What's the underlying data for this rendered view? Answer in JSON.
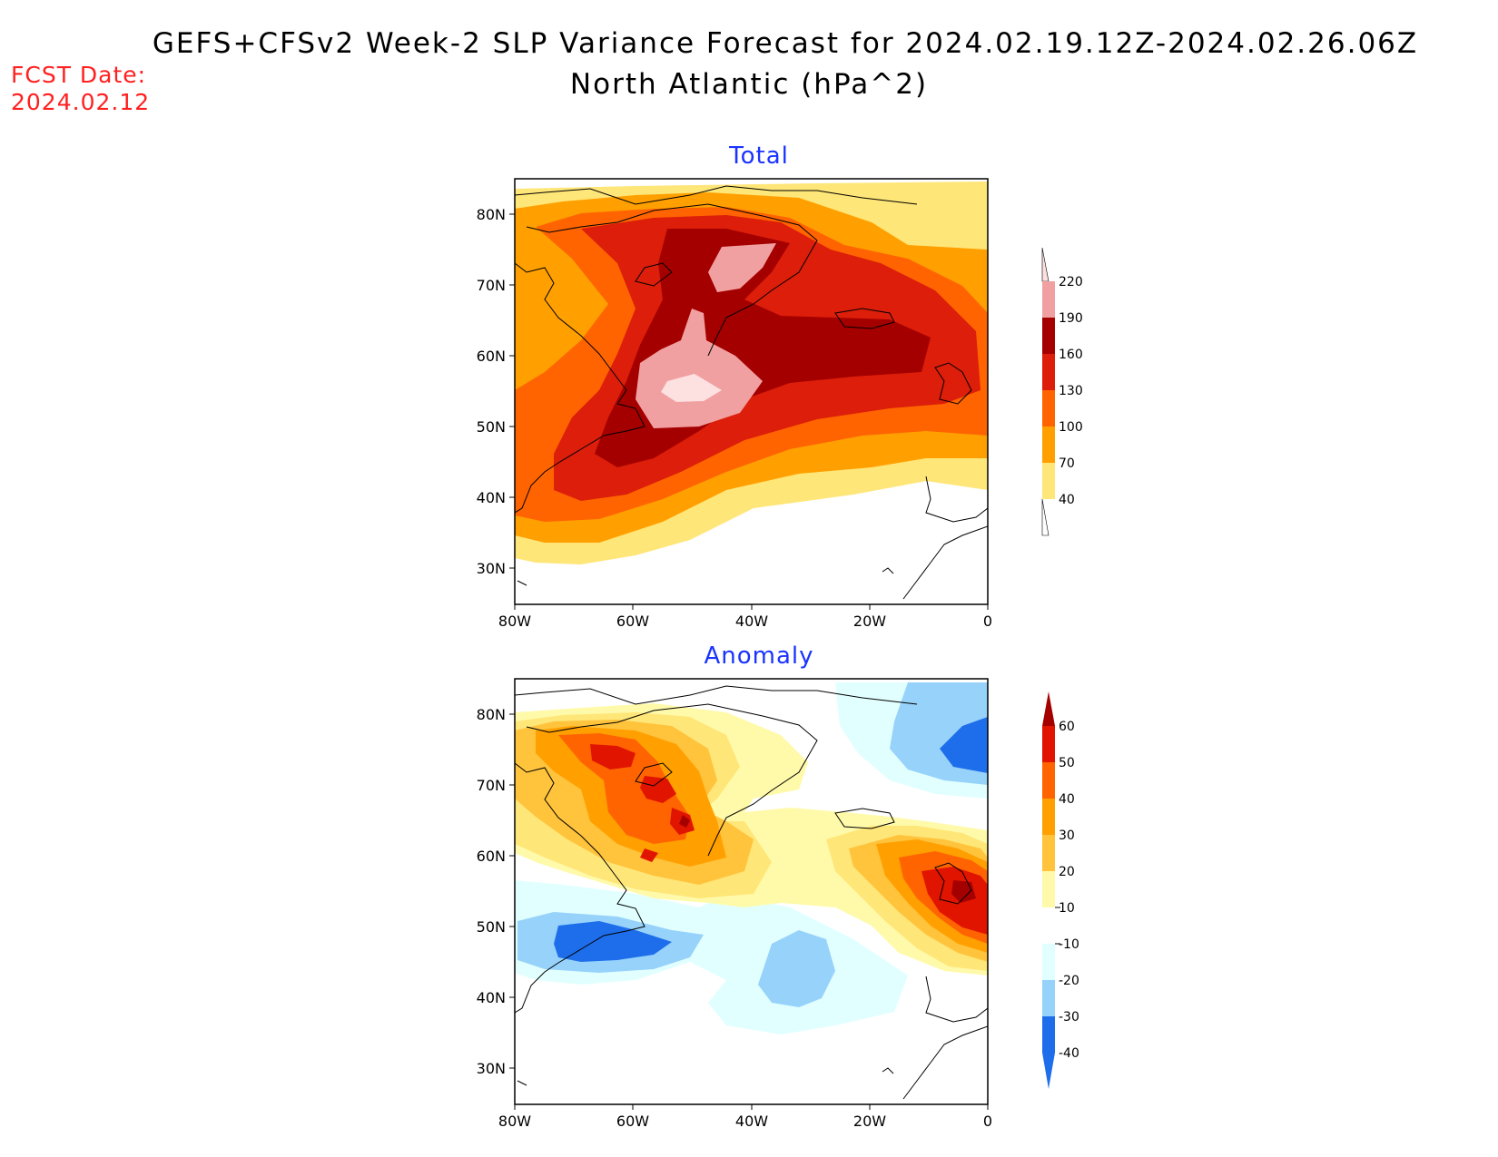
{
  "header": {
    "title": "GEFS+CFSv2 Week-2 SLP Variance Forecast for 2024.02.19.12Z-2024.02.26.06Z",
    "subtitle": "North Atlantic (hPa^2)",
    "fcst_label": "FCST Date:",
    "fcst_date": "2024.02.12"
  },
  "axes": {
    "lat_ticks": [
      "80N",
      "70N",
      "60N",
      "50N",
      "40N",
      "30N"
    ],
    "lon_ticks": [
      "80W",
      "60W",
      "40W",
      "20W",
      "0"
    ]
  },
  "panels": [
    {
      "title": "Total",
      "colorbar": {
        "labels": [
          "220",
          "190",
          "160",
          "130",
          "100",
          "70",
          "40"
        ],
        "colors": [
          "#fde0e0",
          "#f0a0a0",
          "#a50000",
          "#dc1e0a",
          "#ff6400",
          "#ffa000",
          "#ffe678"
        ]
      },
      "shading": {
        "background": "#ffffff",
        "fills": [
          "#ffe678",
          "#ffa000",
          "#ff6400",
          "#dc1e0a",
          "#a50000",
          "#f0a0a0",
          "#fde0e0"
        ]
      }
    },
    {
      "title": "Anomaly",
      "colorbar": {
        "labels": [
          "60",
          "50",
          "40",
          "30",
          "20",
          "10",
          "-10",
          "-20",
          "-30",
          "-40"
        ],
        "colors": [
          "#a50000",
          "#e11400",
          "#ff6400",
          "#ffa000",
          "#ffc33c",
          "#ffe678",
          "#fffaaa",
          "#ffffff",
          "#e1ffff",
          "#96d2fa",
          "#1e6eeb"
        ]
      },
      "shading": {
        "background": "#ffffff",
        "positive_fills": [
          "#fffaaa",
          "#ffe678",
          "#ffc33c",
          "#ffa000",
          "#ff6400",
          "#e11400",
          "#a50000"
        ],
        "negative_fills": [
          "#e1ffff",
          "#96d2fa",
          "#1e6eeb"
        ]
      }
    }
  ]
}
